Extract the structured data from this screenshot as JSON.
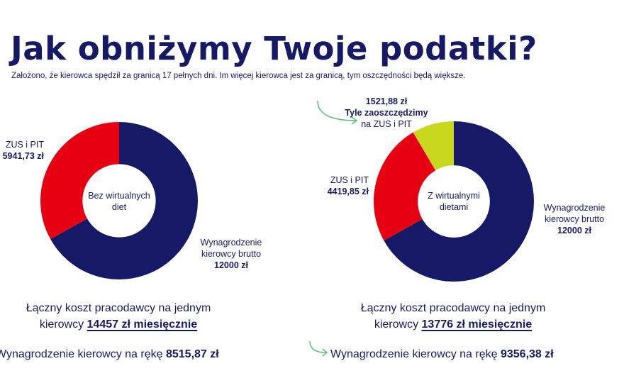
{
  "header": {
    "title": "Jak obniżymy Twoje podatki?",
    "subtitle": "Założono, że kierowca spędził za granicą 17 pełnych dni. Im więcej kierowca jest za granicą, tym oszczędności będą większe."
  },
  "colors": {
    "navy": "#161a66",
    "red": "#e60012",
    "lime": "#c8d61e",
    "arrow_green": "#57c27a"
  },
  "chart_data": [
    {
      "type": "pie",
      "center_label": "Bez wirtualnych diet",
      "slices": [
        {
          "label": "Wynagrodzenie kierowcy brutto",
          "value": 12000,
          "value_text": "12000 zł",
          "color": "#161a66"
        },
        {
          "label": "ZUS i PIT",
          "value": 5941.73,
          "value_text": "5941,73 zł",
          "color": "#e60012"
        }
      ]
    },
    {
      "type": "pie",
      "center_label": "Z wirtualnymi dietami",
      "slices": [
        {
          "label": "Wynagrodzenie kierowcy brutto",
          "value": 12000,
          "value_text": "12000 zł",
          "color": "#161a66"
        },
        {
          "label": "ZUS i PIT",
          "value": 4419.85,
          "value_text": "4419,85 zł",
          "color": "#e60012"
        },
        {
          "label": "Tyle zaoszczędzimy na ZUS i PIT",
          "value": 1521.88,
          "value_text": "1521,88 zł",
          "color": "#c8d61e"
        }
      ]
    }
  ],
  "left": {
    "zus_label": "ZUS i PIT",
    "zus_value": "5941,73 zł",
    "center_line1": "Bez wirtualnych",
    "center_line2": "diet",
    "gross_line1": "Wynagrodzenie",
    "gross_line2": "kierowcy brutto",
    "gross_value": "12000 zł",
    "cost_prefix": "Łączny koszt pracodawcy na jednym",
    "cost_line2_prefix": "kierowcy",
    "cost_highlight": "14457 zł miesięcznie",
    "net_prefix": "Wynagrodzenie kierowcy na rękę",
    "net_value": "8515,87 zł"
  },
  "right": {
    "savings_value": "1521,88 zł",
    "savings_line1": "Tyle zaoszczędzimy",
    "savings_line2": "na ZUS i PIT",
    "zus_label": "ZUS i PIT",
    "zus_value": "4419,85 zł",
    "center_line1": "Z wirtualnymi",
    "center_line2": "dietami",
    "gross_line1": "Wynagrodzenie",
    "gross_line2": "kierowcy brutto",
    "gross_value": "12000 zł",
    "cost_prefix": "Łączny koszt pracodawcy na jednym",
    "cost_line2_prefix": "kierowcy",
    "cost_highlight": "13776 zł miesięcznie",
    "net_prefix": "Wynagrodzenie kierowcy na rękę",
    "net_value": "9356,38 zł"
  }
}
